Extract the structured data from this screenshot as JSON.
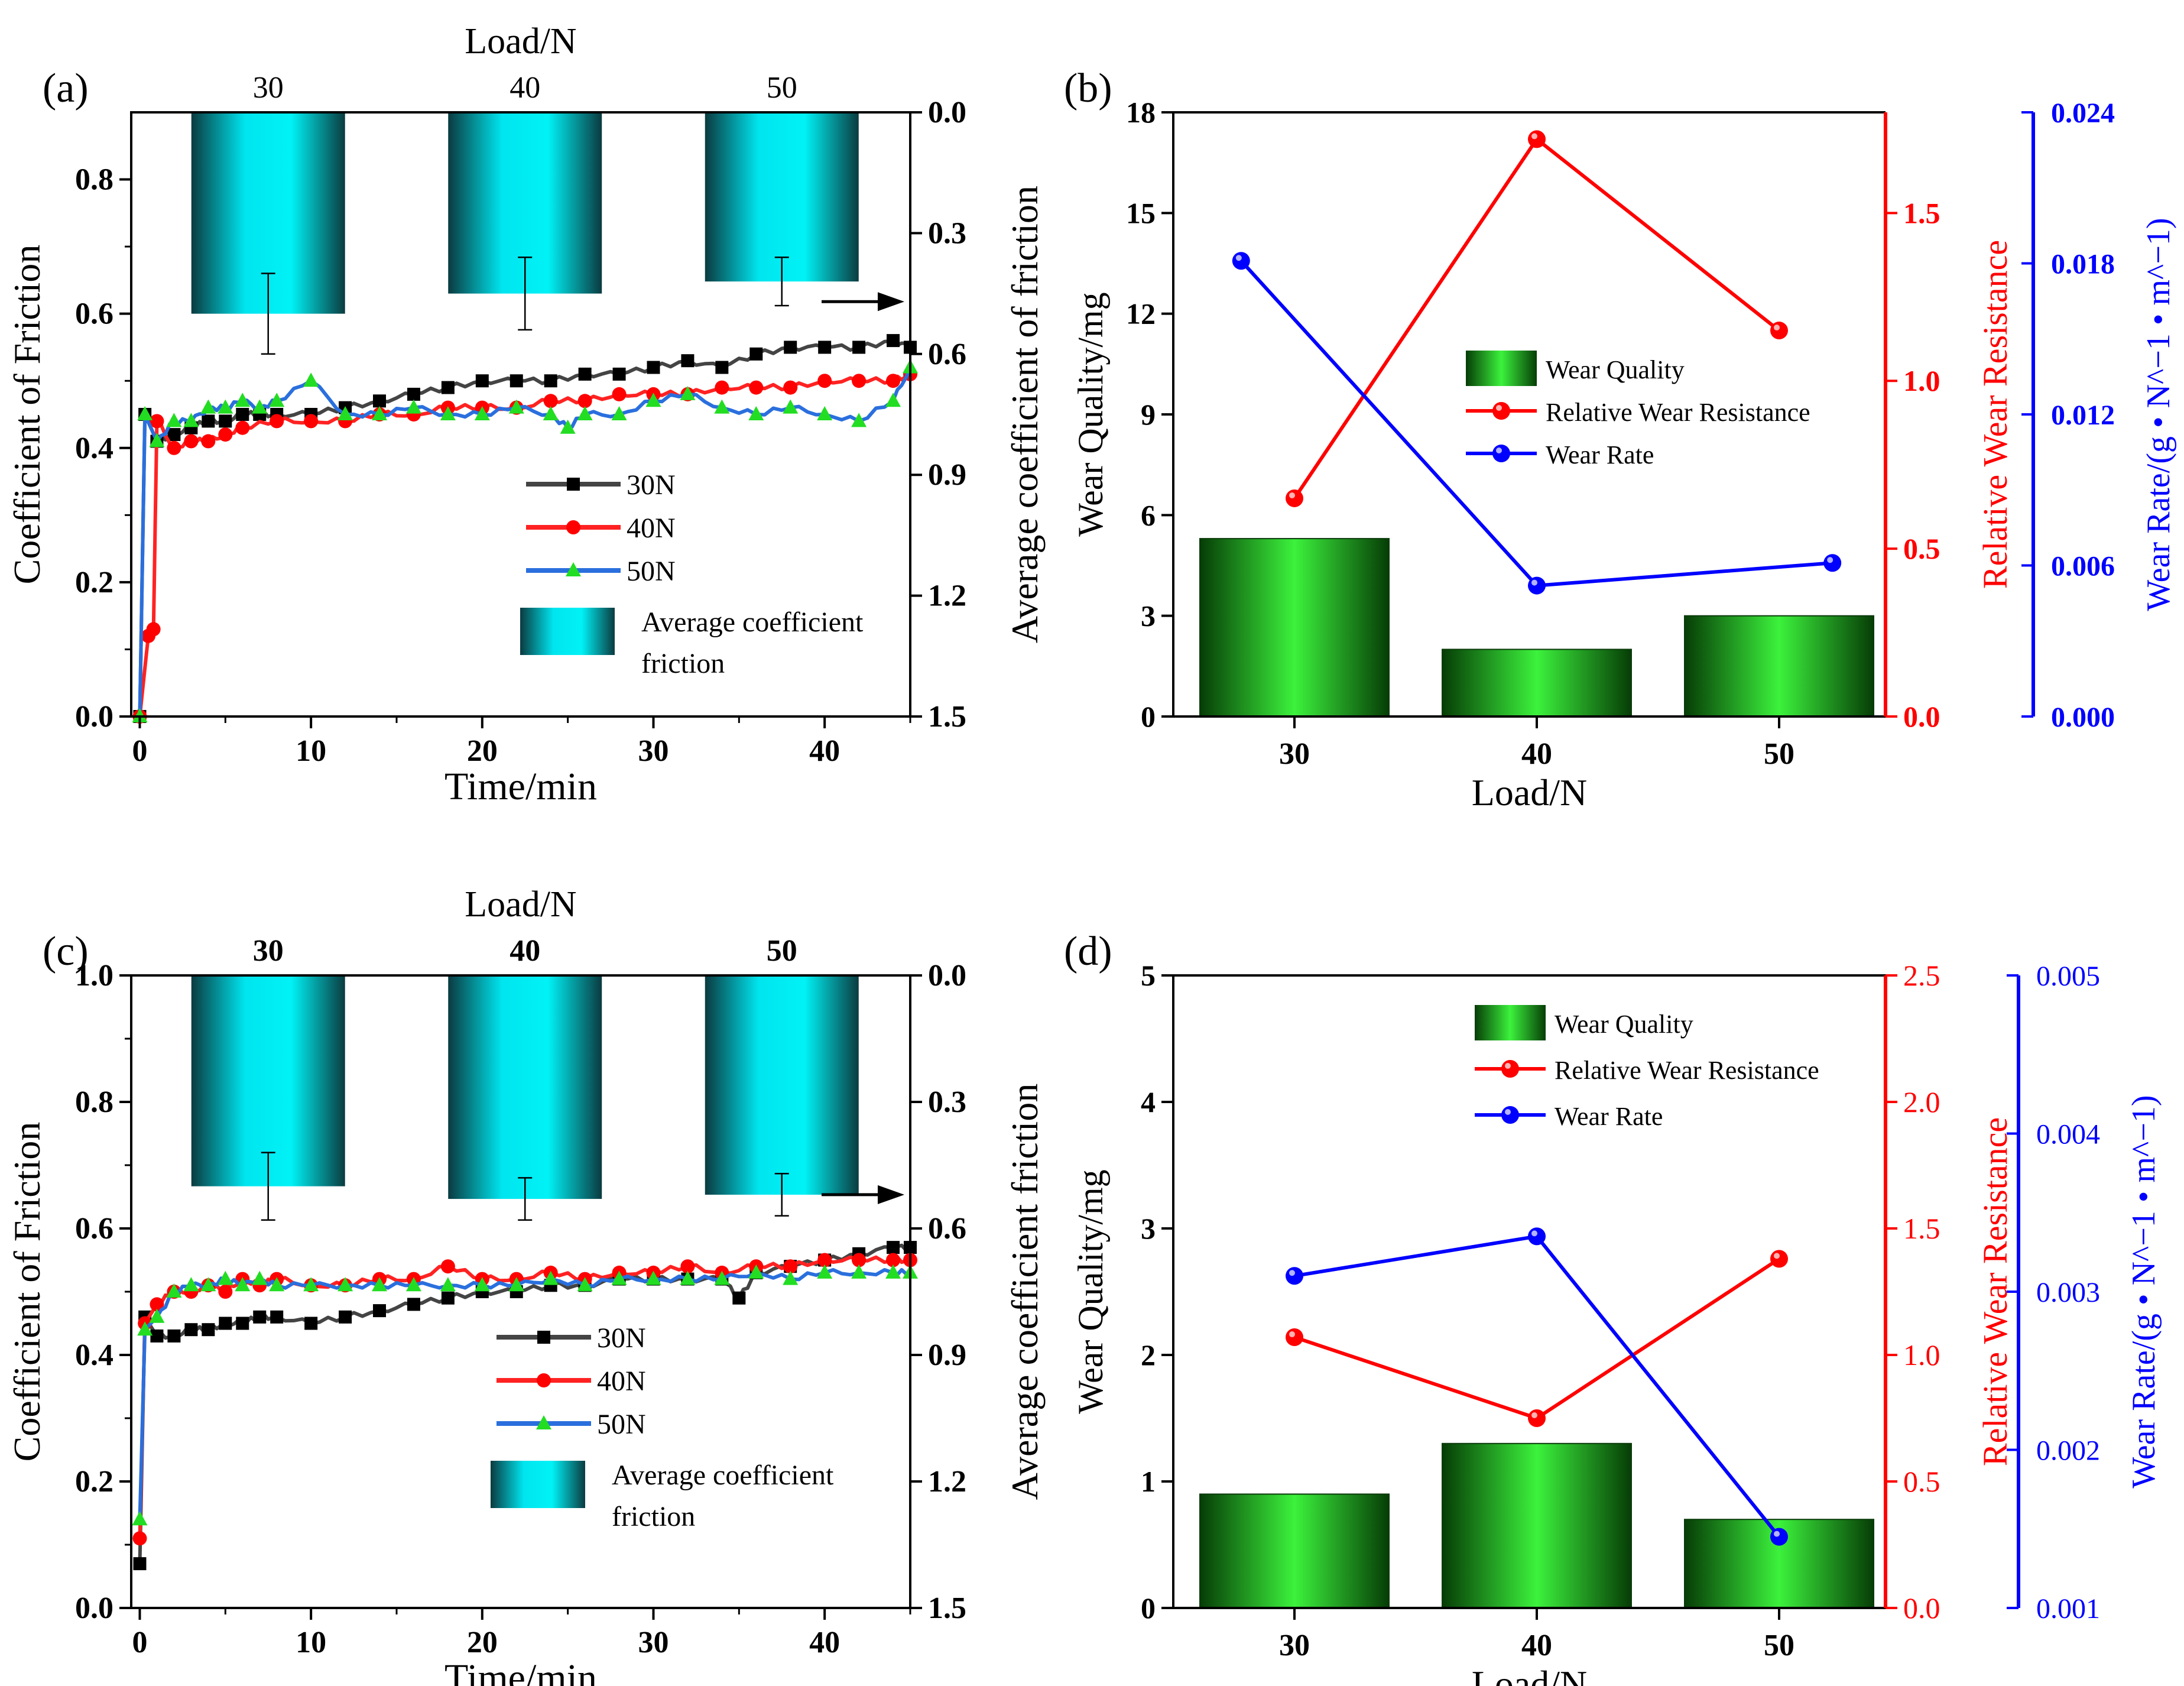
{
  "colors": {
    "s30": "#444444",
    "s40": "#ff2222",
    "s50": "#2a6fdd",
    "m30": "#000000",
    "m40": "#ff0000",
    "m50": "#22dd22",
    "red_axis": "#ff0000",
    "blue_axis": "#0000ff",
    "line_red": "#ff0000",
    "line_blue": "#0000ff"
  },
  "chart_data": [
    {
      "panel": "(a)",
      "type": "line+bar",
      "xlabel": "Time/min",
      "ylabel": "Coefficient of  Friction",
      "y2label": "Average coefficient of friction",
      "toplabel": "Load/N",
      "top_categories": [
        "30",
        "40",
        "50"
      ],
      "top_bold": false,
      "xlim": [
        -0.5,
        45
      ],
      "ylim": [
        0,
        0.9
      ],
      "y2lim": [
        0,
        1.5
      ],
      "xticks": [
        0,
        10,
        20,
        30,
        40
      ],
      "yticks": [
        0.0,
        0.2,
        0.4,
        0.6,
        0.8
      ],
      "y2ticks": [
        0.0,
        0.3,
        0.6,
        0.9,
        1.2,
        1.5
      ],
      "ytick_labels": [
        "0.0",
        "0.2",
        "0.4",
        "0.6",
        "0.8"
      ],
      "y2tick_labels": [
        "0.0",
        "0.3",
        "0.6",
        "0.9",
        "1.2",
        "1.5"
      ],
      "bars": [
        {
          "cat": "30",
          "avg": 0.5,
          "err": 0.1
        },
        {
          "cat": "40",
          "avg": 0.45,
          "err": 0.09
        },
        {
          "cat": "50",
          "avg": 0.42,
          "err": 0.06
        }
      ],
      "series": [
        {
          "name": "30N",
          "key": "30",
          "x": [
            0,
            0.3,
            1,
            2,
            3,
            4,
            5,
            6,
            7,
            8,
            10,
            12,
            14,
            16,
            18,
            20,
            22,
            24,
            26,
            28,
            30,
            32,
            34,
            36,
            38,
            40,
            42,
            44,
            45
          ],
          "y": [
            0,
            0.45,
            0.41,
            0.42,
            0.43,
            0.44,
            0.44,
            0.45,
            0.45,
            0.45,
            0.45,
            0.46,
            0.47,
            0.48,
            0.49,
            0.5,
            0.5,
            0.5,
            0.51,
            0.51,
            0.52,
            0.53,
            0.52,
            0.54,
            0.55,
            0.55,
            0.55,
            0.56,
            0.55
          ]
        },
        {
          "name": "40N",
          "key": "40",
          "x": [
            0,
            0.5,
            0.8,
            1,
            2,
            3,
            4,
            5,
            6,
            8,
            10,
            12,
            14,
            16,
            18,
            20,
            22,
            24,
            26,
            28,
            30,
            32,
            34,
            36,
            38,
            40,
            42,
            44,
            45
          ],
          "y": [
            0,
            0.12,
            0.13,
            0.44,
            0.4,
            0.41,
            0.41,
            0.42,
            0.43,
            0.44,
            0.44,
            0.44,
            0.45,
            0.45,
            0.46,
            0.46,
            0.46,
            0.47,
            0.47,
            0.48,
            0.48,
            0.48,
            0.49,
            0.49,
            0.49,
            0.5,
            0.5,
            0.5,
            0.51
          ]
        },
        {
          "name": "50N",
          "key": "50",
          "x": [
            0,
            0.3,
            1,
            2,
            3,
            4,
            5,
            6,
            7,
            8,
            10,
            12,
            14,
            16,
            18,
            20,
            22,
            24,
            25,
            26,
            28,
            30,
            32,
            34,
            36,
            38,
            40,
            42,
            44,
            45
          ],
          "y": [
            0,
            0.45,
            0.41,
            0.44,
            0.44,
            0.46,
            0.46,
            0.47,
            0.46,
            0.47,
            0.5,
            0.45,
            0.45,
            0.46,
            0.45,
            0.45,
            0.46,
            0.45,
            0.43,
            0.45,
            0.45,
            0.47,
            0.48,
            0.46,
            0.45,
            0.46,
            0.45,
            0.44,
            0.47,
            0.52
          ]
        }
      ],
      "legend": {
        "line_labels": [
          "30N",
          "40N",
          "50N"
        ],
        "bar_label_1": "Average coefficient",
        "bar_label_2": "friction"
      }
    },
    {
      "panel": "(b)",
      "type": "bar+line",
      "xlabel": "Load/N",
      "ylabel": "Wear Quality/mg",
      "y2label": "Relative Wear Resistance",
      "y3label": "Wear Rate/(g • N^−1 • m^−1)",
      "categories": [
        "30",
        "40",
        "50"
      ],
      "cat_bold": true,
      "ylim": [
        0,
        18
      ],
      "y2lim": [
        0,
        1.8
      ],
      "y3lim": [
        0,
        0.024
      ],
      "yticks": [
        0,
        3,
        6,
        9,
        12,
        15,
        18
      ],
      "ytick_labels": [
        "0",
        "3",
        "6",
        "9",
        "12",
        "15",
        "18"
      ],
      "y2ticks": [
        0.0,
        0.5,
        1.0,
        1.5
      ],
      "y2tick_labels": [
        "0.0",
        "0.5",
        "1.0",
        "1.5"
      ],
      "y3ticks": [
        0.0,
        0.006,
        0.012,
        0.018,
        0.024
      ],
      "y3tick_labels": [
        "0.000",
        "0.006",
        "0.012",
        "0.018",
        "0.024"
      ],
      "wear_quality": [
        5.3,
        2.0,
        3.0
      ],
      "relative_wear_resistance": [
        0.65,
        1.72,
        1.15
      ],
      "relative_x": [
        30,
        40,
        50
      ],
      "wear_rate": [
        0.0181,
        0.0052,
        0.0061
      ],
      "wear_rate_x": [
        27.8,
        40,
        52.2
      ],
      "axis_bold": true,
      "legend": {
        "quality": "Wear Quality",
        "resistance": "Relative Wear Resistance",
        "rate": "Wear Rate"
      }
    },
    {
      "panel": "(c)",
      "type": "line+bar",
      "xlabel": "Time/min",
      "ylabel": "Coefficient of  Friction",
      "y2label": "Average coefficient friction",
      "toplabel": "Load/N",
      "top_categories": [
        "30",
        "40",
        "50"
      ],
      "top_bold": true,
      "xlim": [
        -0.5,
        45
      ],
      "ylim": [
        0,
        1.0
      ],
      "y2lim": [
        0,
        1.5
      ],
      "xticks": [
        0,
        10,
        20,
        30,
        40
      ],
      "yticks": [
        0.0,
        0.2,
        0.4,
        0.6,
        0.8,
        1.0
      ],
      "y2ticks": [
        0.0,
        0.3,
        0.6,
        0.9,
        1.2,
        1.5
      ],
      "ytick_labels": [
        "0.0",
        "0.2",
        "0.4",
        "0.6",
        "0.8",
        "1.0"
      ],
      "y2tick_labels": [
        "0.0",
        "0.3",
        "0.6",
        "0.9",
        "1.2",
        "1.5"
      ],
      "bars": [
        {
          "cat": "30",
          "avg": 0.5,
          "err": 0.08
        },
        {
          "cat": "40",
          "avg": 0.53,
          "err": 0.05
        },
        {
          "cat": "50",
          "avg": 0.52,
          "err": 0.05
        }
      ],
      "series": [
        {
          "name": "30N",
          "key": "30",
          "x": [
            0,
            0.3,
            1,
            2,
            3,
            4,
            5,
            6,
            7,
            8,
            10,
            12,
            14,
            16,
            18,
            20,
            22,
            24,
            26,
            28,
            30,
            32,
            34,
            35,
            36,
            38,
            40,
            42,
            44,
            45
          ],
          "y": [
            0.07,
            0.46,
            0.43,
            0.43,
            0.44,
            0.44,
            0.45,
            0.45,
            0.46,
            0.46,
            0.45,
            0.46,
            0.47,
            0.48,
            0.49,
            0.5,
            0.5,
            0.51,
            0.51,
            0.52,
            0.52,
            0.52,
            0.52,
            0.49,
            0.53,
            0.54,
            0.55,
            0.56,
            0.57,
            0.57
          ]
        },
        {
          "name": "40N",
          "key": "40",
          "x": [
            0,
            0.3,
            1,
            2,
            3,
            4,
            5,
            6,
            7,
            8,
            10,
            12,
            14,
            16,
            18,
            20,
            22,
            24,
            26,
            28,
            30,
            32,
            34,
            36,
            38,
            40,
            42,
            44,
            45
          ],
          "y": [
            0.11,
            0.45,
            0.48,
            0.5,
            0.5,
            0.51,
            0.5,
            0.52,
            0.51,
            0.52,
            0.51,
            0.51,
            0.52,
            0.52,
            0.54,
            0.52,
            0.52,
            0.53,
            0.52,
            0.53,
            0.53,
            0.54,
            0.53,
            0.54,
            0.54,
            0.55,
            0.55,
            0.55,
            0.55
          ]
        },
        {
          "name": "50N",
          "key": "50",
          "x": [
            0,
            0.3,
            1,
            2,
            3,
            4,
            5,
            6,
            7,
            8,
            10,
            12,
            14,
            16,
            18,
            20,
            22,
            24,
            26,
            28,
            30,
            32,
            34,
            36,
            38,
            40,
            42,
            44,
            45
          ],
          "y": [
            0.14,
            0.44,
            0.46,
            0.5,
            0.51,
            0.51,
            0.52,
            0.51,
            0.52,
            0.51,
            0.51,
            0.51,
            0.51,
            0.51,
            0.51,
            0.51,
            0.51,
            0.52,
            0.51,
            0.52,
            0.52,
            0.52,
            0.52,
            0.53,
            0.52,
            0.53,
            0.53,
            0.53,
            0.53
          ]
        }
      ],
      "legend": {
        "line_labels": [
          "30N",
          "40N",
          "50N"
        ],
        "bar_label_1": "Average coefficient",
        "bar_label_2": "friction"
      }
    },
    {
      "panel": "(d)",
      "type": "bar+line",
      "xlabel": "Load/N",
      "ylabel": "Wear Quality/mg",
      "y2label": "Relative Wear Resistance",
      "y3label": "Wear Rate/(g • N^−1 • m^−1)",
      "categories": [
        "30",
        "40",
        "50"
      ],
      "cat_bold": true,
      "ylim": [
        0,
        5
      ],
      "y2lim": [
        0,
        2.5
      ],
      "y3lim": [
        0.001,
        0.005
      ],
      "yticks": [
        0,
        1,
        2,
        3,
        4,
        5
      ],
      "ytick_labels": [
        "0",
        "1",
        "2",
        "3",
        "4",
        "5"
      ],
      "y2ticks": [
        0.0,
        0.5,
        1.0,
        1.5,
        2.0,
        2.5
      ],
      "y2tick_labels": [
        "0.0",
        "0.5",
        "1.0",
        "1.5",
        "2.0",
        "2.5"
      ],
      "y3ticks": [
        0.001,
        0.002,
        0.003,
        0.004,
        0.005
      ],
      "y3tick_labels": [
        "0.001",
        "0.002",
        "0.003",
        "0.004",
        "0.005"
      ],
      "wear_quality": [
        0.9,
        1.3,
        0.7
      ],
      "relative_wear_resistance": [
        1.07,
        0.75,
        1.38
      ],
      "relative_x": [
        30,
        40,
        50
      ],
      "wear_rate": [
        0.0031,
        0.00335,
        0.00145
      ],
      "wear_rate_x": [
        30,
        40,
        50
      ],
      "axis_bold": false,
      "legend": {
        "quality": "Wear Quality",
        "resistance": "Relative Wear Resistance",
        "rate": "Wear Rate"
      }
    }
  ]
}
